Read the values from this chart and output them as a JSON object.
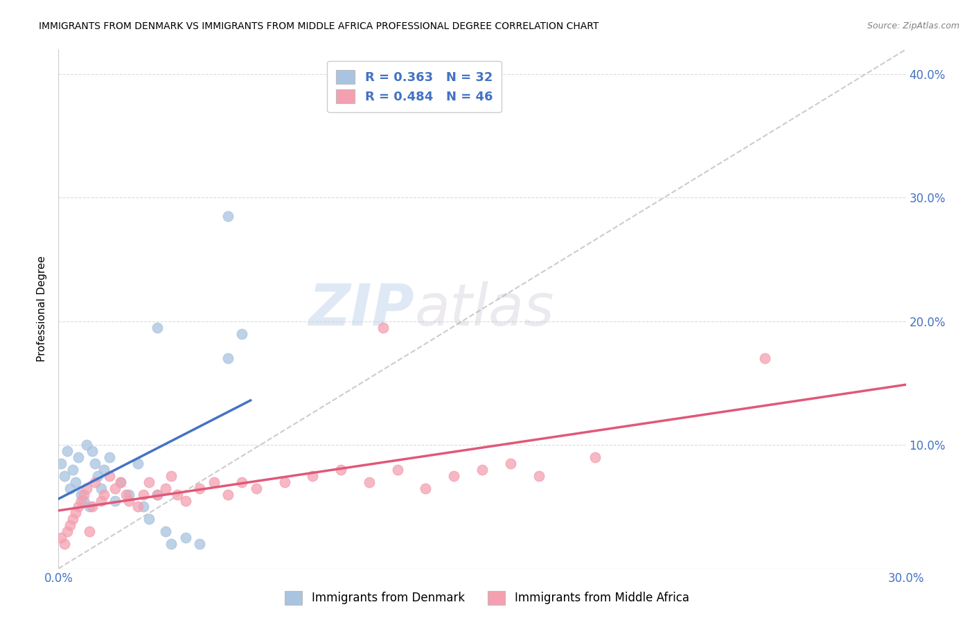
{
  "title": "IMMIGRANTS FROM DENMARK VS IMMIGRANTS FROM MIDDLE AFRICA PROFESSIONAL DEGREE CORRELATION CHART",
  "source": "Source: ZipAtlas.com",
  "ylabel": "Professional Degree",
  "xlim": [
    0.0,
    0.3
  ],
  "ylim": [
    0.0,
    0.42
  ],
  "x_ticks": [
    0.0,
    0.05,
    0.1,
    0.15,
    0.2,
    0.25,
    0.3
  ],
  "x_tick_labels": [
    "0.0%",
    "",
    "",
    "",
    "",
    "",
    "30.0%"
  ],
  "y_ticks": [
    0.0,
    0.1,
    0.2,
    0.3,
    0.4
  ],
  "y_tick_labels": [
    "",
    "10.0%",
    "20.0%",
    "30.0%",
    "40.0%"
  ],
  "r_denmark": 0.363,
  "n_denmark": 32,
  "r_middle_africa": 0.484,
  "n_middle_africa": 46,
  "legend_labels": [
    "Immigrants from Denmark",
    "Immigrants from Middle Africa"
  ],
  "color_denmark": "#a8c4e0",
  "color_middle_africa": "#f4a0b0",
  "line_color_denmark": "#4472c4",
  "line_color_middle_africa": "#e05878",
  "watermark_zip": "ZIP",
  "watermark_atlas": "atlas",
  "background_color": "#ffffff",
  "denmark_x": [
    0.001,
    0.002,
    0.003,
    0.004,
    0.005,
    0.006,
    0.007,
    0.008,
    0.009,
    0.01,
    0.011,
    0.012,
    0.013,
    0.014,
    0.015,
    0.016,
    0.018,
    0.02,
    0.022,
    0.025,
    0.028,
    0.03,
    0.032,
    0.035,
    0.038,
    0.04,
    0.045,
    0.05,
    0.06,
    0.065,
    0.035,
    0.06
  ],
  "denmark_y": [
    0.085,
    0.075,
    0.095,
    0.065,
    0.08,
    0.07,
    0.09,
    0.06,
    0.055,
    0.1,
    0.05,
    0.095,
    0.085,
    0.075,
    0.065,
    0.08,
    0.09,
    0.055,
    0.07,
    0.06,
    0.085,
    0.05,
    0.04,
    0.06,
    0.03,
    0.02,
    0.025,
    0.02,
    0.17,
    0.19,
    0.195,
    0.285
  ],
  "middle_africa_x": [
    0.001,
    0.002,
    0.003,
    0.004,
    0.005,
    0.006,
    0.007,
    0.008,
    0.009,
    0.01,
    0.011,
    0.012,
    0.013,
    0.015,
    0.016,
    0.018,
    0.02,
    0.022,
    0.024,
    0.025,
    0.028,
    0.03,
    0.032,
    0.035,
    0.038,
    0.04,
    0.042,
    0.045,
    0.05,
    0.055,
    0.06,
    0.065,
    0.07,
    0.08,
    0.09,
    0.1,
    0.11,
    0.12,
    0.13,
    0.14,
    0.15,
    0.16,
    0.17,
    0.19,
    0.115,
    0.25
  ],
  "middle_africa_y": [
    0.025,
    0.02,
    0.03,
    0.035,
    0.04,
    0.045,
    0.05,
    0.055,
    0.06,
    0.065,
    0.03,
    0.05,
    0.07,
    0.055,
    0.06,
    0.075,
    0.065,
    0.07,
    0.06,
    0.055,
    0.05,
    0.06,
    0.07,
    0.06,
    0.065,
    0.075,
    0.06,
    0.055,
    0.065,
    0.07,
    0.06,
    0.07,
    0.065,
    0.07,
    0.075,
    0.08,
    0.07,
    0.08,
    0.065,
    0.075,
    0.08,
    0.085,
    0.075,
    0.09,
    0.195,
    0.17
  ],
  "diag_line_x": [
    0.0,
    0.3
  ],
  "diag_line_y": [
    0.0,
    0.42
  ]
}
